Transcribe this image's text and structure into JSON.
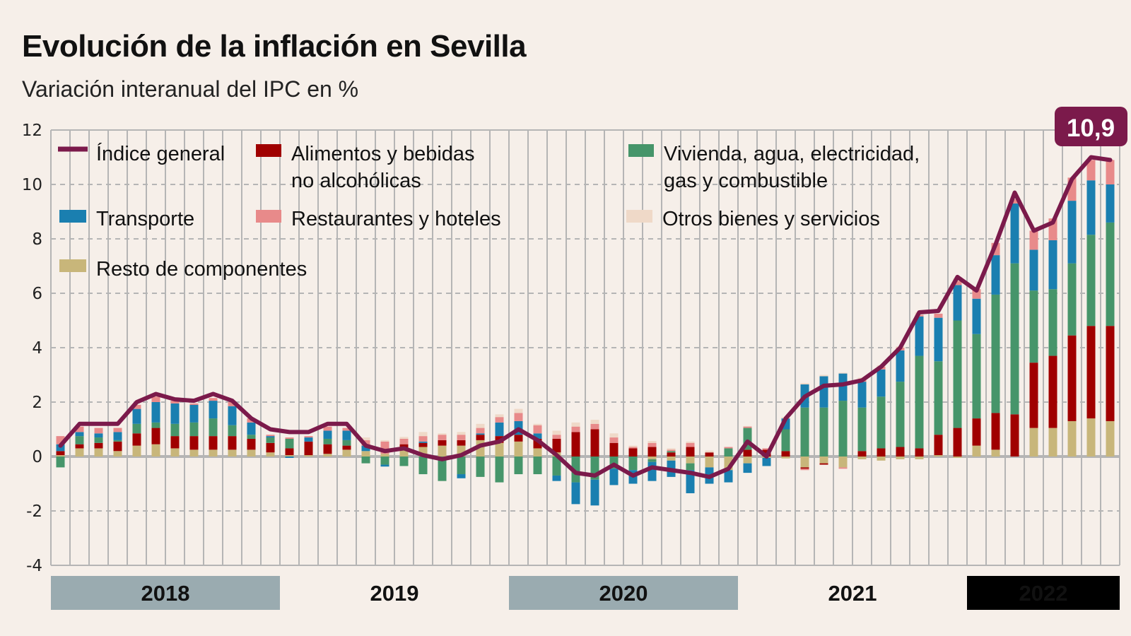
{
  "chart_data": {
    "type": "bar",
    "stacked": true,
    "title": "Evolución de la inflación en Sevilla",
    "subtitle": "Variación interanual del IPC en %",
    "ylim": [
      -4,
      12
    ],
    "yticks": [
      "12",
      "10",
      "8",
      "6",
      "4",
      "2",
      "0",
      "-2",
      "-4"
    ],
    "grid": true,
    "legend_placement": "top-left",
    "x": [
      "2018-01",
      "2018-02",
      "2018-03",
      "2018-04",
      "2018-05",
      "2018-06",
      "2018-07",
      "2018-08",
      "2018-09",
      "2018-10",
      "2018-11",
      "2018-12",
      "2019-01",
      "2019-02",
      "2019-03",
      "2019-04",
      "2019-05",
      "2019-06",
      "2019-07",
      "2019-08",
      "2019-09",
      "2019-10",
      "2019-11",
      "2019-12",
      "2020-01",
      "2020-02",
      "2020-03",
      "2020-04",
      "2020-05",
      "2020-06",
      "2020-07",
      "2020-08",
      "2020-09",
      "2020-10",
      "2020-11",
      "2020-12",
      "2021-01",
      "2021-02",
      "2021-03",
      "2021-04",
      "2021-05",
      "2021-06",
      "2021-07",
      "2021-08",
      "2021-09",
      "2021-10",
      "2021-11",
      "2021-12",
      "2022-01",
      "2022-02",
      "2022-03",
      "2022-04",
      "2022-05",
      "2022-06",
      "2022-07",
      "2022-08"
    ],
    "years": [
      {
        "label": "2018",
        "style": "gray"
      },
      {
        "label": "2019",
        "style": "none"
      },
      {
        "label": "2020",
        "style": "gray"
      },
      {
        "label": "2021",
        "style": "none"
      },
      {
        "label": "2022",
        "style": "black"
      }
    ],
    "line": {
      "name": "Índice general",
      "color": "#7b1a4b",
      "values": [
        0.4,
        1.2,
        1.2,
        1.2,
        2.0,
        2.3,
        2.1,
        2.05,
        2.3,
        2.05,
        1.4,
        1.0,
        0.9,
        0.9,
        1.2,
        1.2,
        0.4,
        0.2,
        0.3,
        0.05,
        -0.1,
        0.05,
        0.4,
        0.55,
        1.0,
        0.6,
        0.05,
        -0.6,
        -0.7,
        -0.3,
        -0.7,
        -0.4,
        -0.5,
        -0.6,
        -0.75,
        -0.45,
        0.55,
        0.0,
        1.4,
        2.2,
        2.6,
        2.65,
        2.8,
        3.3,
        4.0,
        5.3,
        5.35,
        6.6,
        6.1,
        7.8,
        9.7,
        8.3,
        8.6,
        10.2,
        11.0,
        10.9
      ]
    },
    "series": [
      {
        "name": "Resto de componentes",
        "color": "#c8b67a",
        "values": [
          0.05,
          0.3,
          0.3,
          0.2,
          0.4,
          0.45,
          0.3,
          0.25,
          0.25,
          0.25,
          0.25,
          0.15,
          0.05,
          0.05,
          0.1,
          0.25,
          0.2,
          0.1,
          0.25,
          0.35,
          0.4,
          0.4,
          0.6,
          0.5,
          0.55,
          0.3,
          0.15,
          0,
          0,
          0,
          0,
          -0.1,
          -0.15,
          -0.25,
          -0.4,
          -0.5,
          -0.25,
          -0.05,
          -0.07,
          -0.4,
          -0.25,
          -0.4,
          -0.1,
          -0.15,
          -0.1,
          -0.1,
          0.05,
          -0.05,
          0.4,
          0.25,
          0,
          1.05,
          1.05,
          1.3,
          1.4,
          1.3
        ]
      },
      {
        "name": "Alimentos y bebidas no alcohólicas",
        "color": "#a00000",
        "values": [
          0.15,
          0.15,
          0.2,
          0.35,
          0.45,
          0.6,
          0.45,
          0.5,
          0.5,
          0.5,
          0.4,
          0.35,
          0.25,
          0.5,
          0.35,
          0.15,
          0,
          0,
          0.2,
          0.15,
          0.2,
          0.2,
          0.2,
          0.25,
          0.25,
          0.35,
          0.5,
          0.9,
          1.0,
          0.5,
          0.3,
          0.35,
          0.15,
          0.35,
          0.15,
          0,
          0.25,
          0.25,
          0.2,
          -0.05,
          -0.05,
          0,
          0.2,
          0.3,
          0.35,
          0.3,
          0.75,
          1.05,
          1.0,
          1.35,
          1.55,
          2.4,
          2.65,
          3.15,
          3.4,
          3.5
        ]
      },
      {
        "name": "Vivienda, agua, electricidad, gas y combustible",
        "color": "#46956a",
        "values": [
          -0.4,
          0.3,
          0.2,
          0.05,
          0.35,
          0.2,
          0.45,
          0.5,
          0.65,
          0.4,
          0.15,
          0.2,
          0.35,
          0,
          0.2,
          0.2,
          -0.25,
          -0.3,
          -0.35,
          -0.65,
          -0.9,
          -0.65,
          -0.75,
          -0.95,
          -0.65,
          -0.65,
          -0.7,
          -0.95,
          -0.85,
          -0.45,
          -0.5,
          -0.1,
          0.05,
          -0.25,
          0,
          0.3,
          0.8,
          0,
          0.8,
          1.8,
          1.8,
          2.05,
          1.6,
          1.9,
          2.4,
          3.4,
          2.7,
          3.95,
          3.1,
          4.35,
          5.55,
          2.65,
          2.45,
          2.65,
          3.35,
          3.8
        ]
      },
      {
        "name": "Transporte",
        "color": "#1a7fb0",
        "values": [
          0.25,
          0.15,
          0.15,
          0.3,
          0.55,
          0.75,
          0.75,
          0.65,
          0.65,
          0.7,
          0.45,
          0.05,
          -0.05,
          0.15,
          0.3,
          0.35,
          0.2,
          -0.07,
          0,
          0.05,
          0,
          -0.15,
          0.05,
          0.5,
          0.5,
          0.2,
          -0.2,
          -0.8,
          -0.95,
          -0.6,
          -0.5,
          -0.7,
          -0.6,
          -0.85,
          -0.6,
          -0.45,
          -0.35,
          -0.3,
          0.4,
          0.85,
          1.15,
          1.0,
          0.95,
          1.0,
          1.15,
          1.45,
          1.6,
          1.3,
          1.3,
          1.45,
          2.2,
          1.5,
          1.8,
          2.3,
          2.0,
          1.4
        ]
      },
      {
        "name": "Restaurantes y hoteles",
        "color": "#e88a8a",
        "values": [
          0.3,
          0.2,
          0.2,
          0.15,
          0.15,
          0.2,
          0.1,
          0.05,
          0.1,
          0.15,
          0.15,
          0.05,
          0.05,
          0.05,
          0.15,
          0.1,
          0.2,
          0.45,
          0.2,
          0.2,
          0.2,
          0.2,
          0.2,
          0.2,
          0.3,
          0.3,
          0.15,
          0.2,
          0.2,
          0.2,
          0.05,
          0.15,
          0.05,
          0.15,
          0,
          0.05,
          0.05,
          0.05,
          0,
          -0.05,
          0,
          -0.05,
          0.1,
          0.1,
          0.1,
          0.05,
          0.15,
          0.15,
          0.35,
          0.45,
          0.15,
          0.7,
          0.8,
          0.85,
          0.75,
          0.9
        ]
      },
      {
        "name": "Otros bienes y servicios",
        "color": "#efd9c8",
        "values": [
          0,
          0,
          0,
          0,
          0,
          0,
          0,
          0,
          0,
          0,
          0,
          0,
          0,
          0,
          0,
          0,
          0.1,
          0.05,
          0.07,
          0.15,
          0.05,
          0.1,
          0.15,
          0.1,
          0.15,
          0.05,
          0.15,
          0.15,
          0.15,
          0.15,
          0.05,
          0.07,
          0.05,
          0.05,
          0.07,
          0,
          0.02,
          0,
          0.05,
          0.05,
          0.05,
          0.03,
          0.05,
          0.05,
          0.05,
          0.1,
          0,
          0.1,
          0,
          0,
          0,
          0,
          0,
          0,
          0,
          0
        ]
      }
    ],
    "legend": {
      "indice": "Índice general",
      "alimentos_1": "Alimentos y bebidas",
      "alimentos_2": "no alcohólicas",
      "vivienda_1": "Vivienda, agua, electricidad,",
      "vivienda_2": "gas y combustible",
      "transporte": "Transporte",
      "restaurantes": "Restaurantes y hoteles",
      "otros": "Otros bienes y servicios",
      "resto": "Resto de componentes"
    },
    "annotation": "10,9",
    "colors": {
      "background": "#f6efe9",
      "grid": "#b5b5b5",
      "year_gray": "#9aabb0",
      "year_black": "#000000"
    }
  }
}
